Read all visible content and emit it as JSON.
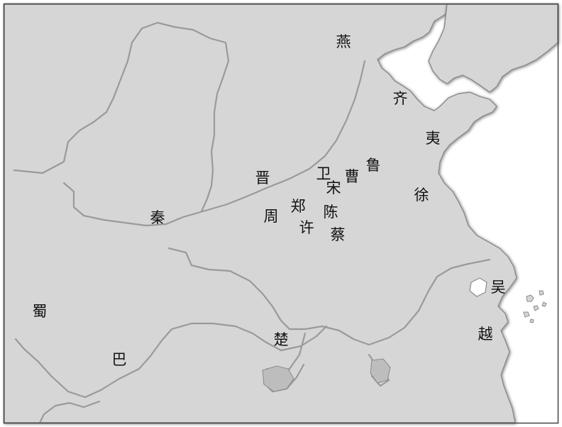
{
  "map": {
    "colors": {
      "land": "#d6d6d6",
      "sea": "#ffffff",
      "river": "#9a9a9a",
      "border": "#444444",
      "label": "#111111"
    },
    "labels": {
      "yan": "燕",
      "qi": "齐",
      "yi": "夷",
      "lu": "鲁",
      "jin": "晋",
      "wei": "卫",
      "cao": "曹",
      "song": "宋",
      "zheng": "郑",
      "xu_state": "徐",
      "qin": "秦",
      "zhou": "周",
      "chen": "陈",
      "xu": "许",
      "cai": "蔡",
      "wu": "吴",
      "shu": "蜀",
      "ba": "巴",
      "chu": "楚",
      "yue": "越"
    }
  }
}
